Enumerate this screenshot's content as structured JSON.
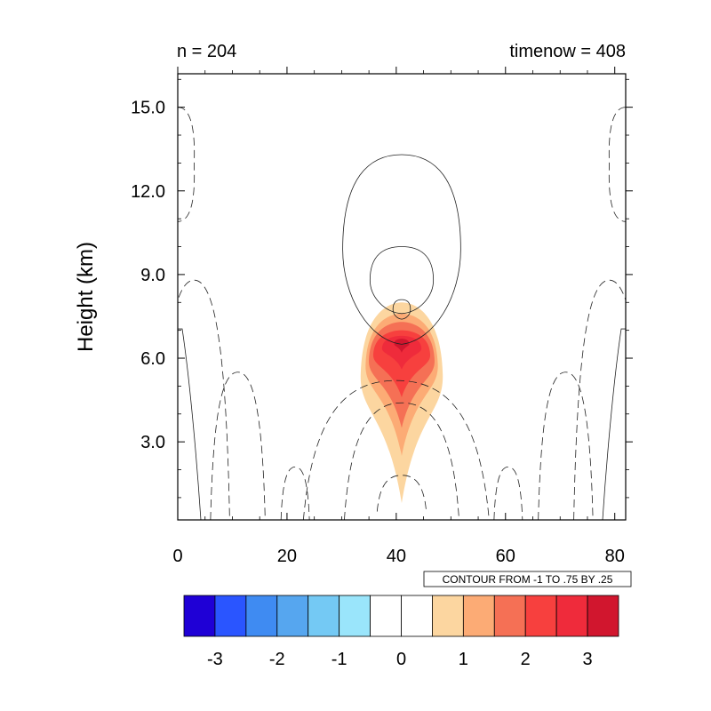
{
  "chart_data": {
    "type": "contour",
    "title_left": "n = 204",
    "title_right": "timenow = 408",
    "xlabel": "",
    "ylabel": "Height (km)",
    "xlim": [
      0,
      82
    ],
    "ylim": [
      0.2,
      16.2
    ],
    "x_ticks": [
      0,
      20,
      40,
      60,
      80
    ],
    "x_tick_labels": [
      "0",
      "20",
      "40",
      "60",
      "80"
    ],
    "y_ticks": [
      3.0,
      6.0,
      9.0,
      12.0,
      15.0
    ],
    "y_tick_labels": [
      "3.0",
      "6.0",
      "9.0",
      "12.0",
      "15.0"
    ],
    "contour_info": "CONTOUR FROM -1 TO .75 BY .25",
    "colorbar": {
      "colors": [
        "#1f00d6",
        "#2a55ff",
        "#3f8bf2",
        "#56a6ef",
        "#74c9f4",
        "#9ae5fb",
        "#ffffff",
        "#ffffff",
        "#fcd6a0",
        "#fcab75",
        "#f57055",
        "#f7403e",
        "#ef2b3b",
        "#d1162e"
      ],
      "tick_values": [
        -3,
        -2,
        -1,
        0,
        1,
        2,
        3
      ],
      "tick_labels": [
        "-3",
        "-2",
        "-1",
        "0",
        "1",
        "2",
        "3"
      ]
    },
    "filled_core": {
      "center_x": 41,
      "levels": [
        {
          "color": "#fcd6a0",
          "ymin": 0.8,
          "ymax": 8.0,
          "halfwidth": 7.5
        },
        {
          "color": "#fcab75",
          "ymin": 2.5,
          "ymax": 7.6,
          "halfwidth": 6.6
        },
        {
          "color": "#f57055",
          "ymin": 3.5,
          "ymax": 7.3,
          "halfwidth": 6.0
        },
        {
          "color": "#f7403e",
          "ymin": 4.6,
          "ymax": 7.0,
          "halfwidth": 5.2
        },
        {
          "color": "#ef2b3b",
          "ymin": 5.6,
          "ymax": 6.8,
          "halfwidth": 3.6
        },
        {
          "color": "#d1162e",
          "ymin": 6.2,
          "ymax": 6.7,
          "halfwidth": 1.4
        }
      ]
    },
    "positive_contours": [
      {
        "cx": 41,
        "ymin": 6.5,
        "ymax": 13.3,
        "halfwidth": 10.8
      },
      {
        "cx": 41,
        "ymin": 7.6,
        "ymax": 10.0,
        "halfwidth": 5.8
      },
      {
        "cx": 41,
        "ymin": 7.4,
        "ymax": 8.1,
        "halfwidth": 1.6
      }
    ],
    "negative_contours": [
      {
        "cx": 3,
        "base": 0.2,
        "top": 8.8,
        "halfwidth": 6.5
      },
      {
        "cx": 11,
        "base": 0.2,
        "top": 5.5,
        "halfwidth": 5.0
      },
      {
        "cx": 21.5,
        "base": 0.2,
        "top": 2.1,
        "halfwidth": 2.6
      },
      {
        "cx": 79,
        "base": 0.2,
        "top": 8.8,
        "halfwidth": 6.5
      },
      {
        "cx": 71,
        "base": 0.2,
        "top": 5.5,
        "halfwidth": 5.0
      },
      {
        "cx": 60.5,
        "base": 0.2,
        "top": 2.1,
        "halfwidth": 2.6
      },
      {
        "cx": 40,
        "base": 0.2,
        "top": 5.2,
        "halfwidth": 17.0
      },
      {
        "cx": 41,
        "base": 0.2,
        "top": 4.4,
        "halfwidth": 10.5
      },
      {
        "cx": 41,
        "base": 0.5,
        "top": 1.8,
        "halfwidth": 4.5
      }
    ],
    "edge_lobes": [
      {
        "side": "left",
        "ymin": 10.9,
        "ymax": 15.0,
        "width": 3.0
      },
      {
        "side": "right",
        "ymin": 10.9,
        "ymax": 15.0,
        "width": 3.0
      }
    ]
  }
}
